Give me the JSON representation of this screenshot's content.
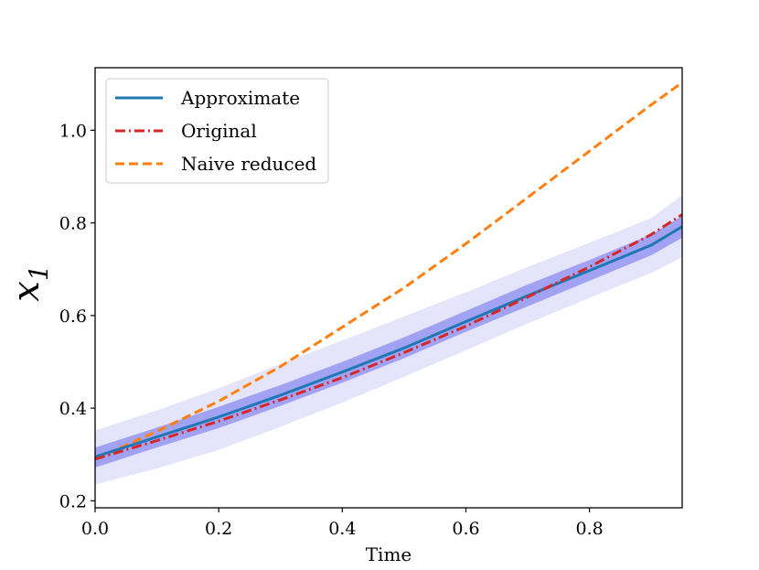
{
  "chart_data": {
    "type": "line",
    "title": "",
    "xlabel": "Time",
    "ylabel": "x",
    "ylabel_subscript": "1",
    "xlim": [
      0.0,
      0.95
    ],
    "ylim": [
      0.185,
      1.135
    ],
    "x_ticks": [
      0.0,
      0.2,
      0.4,
      0.6,
      0.8
    ],
    "x_tick_labels": [
      "0.0",
      "0.2",
      "0.4",
      "0.6",
      "0.8"
    ],
    "y_ticks": [
      0.2,
      0.4,
      0.6,
      0.8,
      1.0
    ],
    "y_tick_labels": [
      "0.2",
      "0.4",
      "0.6",
      "0.8",
      "1.0"
    ],
    "grid": false,
    "legend_position": "top-left",
    "x": [
      0.0,
      0.1,
      0.2,
      0.3,
      0.4,
      0.5,
      0.6,
      0.7,
      0.8,
      0.9,
      0.95
    ],
    "series": [
      {
        "name": "Approximate",
        "style": "solid",
        "color": "#1f77b4",
        "values": [
          0.295,
          0.338,
          0.381,
          0.428,
          0.478,
          0.53,
          0.587,
          0.643,
          0.697,
          0.752,
          0.792
        ]
      },
      {
        "name": "Original",
        "style": "dashdot",
        "color": "#d62728",
        "values": [
          0.29,
          0.33,
          0.372,
          0.418,
          0.466,
          0.52,
          0.577,
          0.64,
          0.705,
          0.775,
          0.818
        ]
      },
      {
        "name": "Naive reduced",
        "style": "dashed",
        "color": "#ff7f0e",
        "values": [
          0.29,
          0.35,
          0.415,
          0.49,
          0.575,
          0.66,
          0.755,
          0.855,
          0.955,
          1.055,
          1.103
        ]
      }
    ],
    "bands": [
      {
        "name": "outer-uncertainty-band",
        "color": "#e4e4fb",
        "lower": [
          0.235,
          0.27,
          0.31,
          0.36,
          0.412,
          0.468,
          0.525,
          0.583,
          0.638,
          0.692,
          0.726
        ],
        "upper": [
          0.352,
          0.395,
          0.443,
          0.495,
          0.546,
          0.598,
          0.65,
          0.705,
          0.757,
          0.81,
          0.86
        ]
      },
      {
        "name": "inner-uncertainty-band",
        "color": "#a2a2f3",
        "lower": [
          0.272,
          0.315,
          0.357,
          0.405,
          0.455,
          0.508,
          0.565,
          0.62,
          0.675,
          0.73,
          0.768
        ],
        "upper": [
          0.315,
          0.358,
          0.403,
          0.45,
          0.5,
          0.553,
          0.61,
          0.667,
          0.72,
          0.775,
          0.815
        ]
      }
    ]
  }
}
